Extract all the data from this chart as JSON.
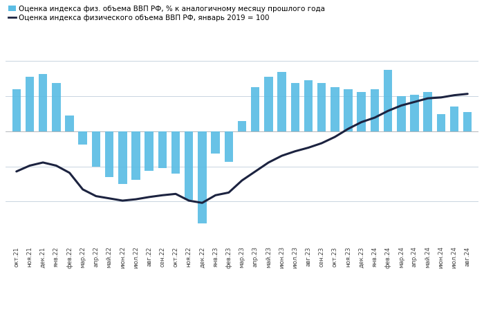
{
  "legend1": "Оценка индекса физ. объема ВВП РФ, % к аналогичному месяцу прошлого года",
  "legend2": "Оценка индекса физического объема ВВП РФ, январь 2019 = 100",
  "legend1_color": "#5bbde4",
  "legend2_color": "#1c2340",
  "bar_color": "#5bbde4",
  "line_color": "#1c2340",
  "background_color": "#ffffff",
  "grid_color": "#c8d4e0",
  "labels": [
    "окт.21",
    "ноя.21",
    "дек.21",
    "янв.22",
    "фев.22",
    "мар.22",
    "апр.22",
    "май.22",
    "июн.22",
    "июл.22",
    "авг.22",
    "сен.22",
    "окт.22",
    "ноя.22",
    "дек.22",
    "янв.23",
    "фев.23",
    "мар.23",
    "апр.23",
    "май.23",
    "июн.23",
    "июл.23",
    "авг.23",
    "сен.23",
    "окт.23",
    "ноя.23",
    "дек.23",
    "янв.24",
    "фев.24",
    "мар.24",
    "апр.24",
    "май.24",
    "июн.24",
    "июл.24",
    "авг.24"
  ],
  "bar_values": [
    4.8,
    6.2,
    6.5,
    5.5,
    1.8,
    -1.5,
    -4.0,
    -5.2,
    -6.0,
    -5.5,
    -4.5,
    -4.2,
    -4.8,
    -7.8,
    -10.5,
    -2.5,
    -3.5,
    1.2,
    5.0,
    6.2,
    6.8,
    5.5,
    5.8,
    5.5,
    5.0,
    4.8,
    4.5,
    4.8,
    7.0,
    4.0,
    4.2,
    4.5,
    2.0,
    2.8,
    2.2
  ],
  "line_values": [
    111.5,
    112.8,
    113.5,
    112.8,
    111.2,
    107.5,
    106.0,
    105.5,
    105.0,
    105.3,
    105.8,
    106.2,
    106.5,
    105.0,
    104.5,
    106.2,
    106.8,
    109.5,
    111.5,
    113.5,
    115.0,
    116.0,
    116.8,
    117.8,
    119.2,
    121.0,
    122.5,
    123.5,
    125.0,
    126.2,
    127.0,
    127.8,
    128.0,
    128.5,
    128.8
  ],
  "bar_ylim": [
    -13,
    10
  ],
  "line_ylim": [
    95,
    140
  ],
  "figsize": [
    7.0,
    4.67
  ],
  "dpi": 100,
  "font_size_legend": 7.5,
  "font_size_ticks": 6.2
}
